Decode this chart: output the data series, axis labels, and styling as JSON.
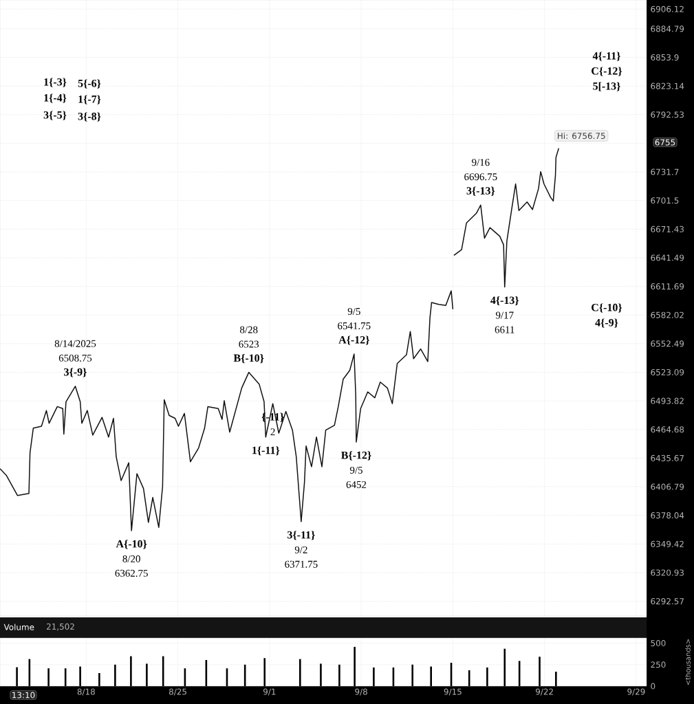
{
  "chart_data": [
    {
      "type": "line",
      "color": "#111111",
      "x": [
        "2025-08-11T10:00",
        "2025-08-11T22:00",
        "2025-08-12T18:00",
        "2025-08-13T15:00",
        "2025-08-13T17:00",
        "2025-08-13T23:00",
        "2025-08-14T14:00",
        "2025-08-14T23:00",
        "2025-08-15T04:00",
        "2025-08-15T19:00",
        "2025-08-16T05:00",
        "2025-08-16T07:00",
        "2025-08-16T11:00",
        "2025-08-17T04:00",
        "2025-08-17T13:00",
        "2025-08-17T16:00",
        "2025-08-18T02:00",
        "2025-08-18T12:00",
        "2025-08-19T05:00",
        "2025-08-19T17:00",
        "2025-08-20T02:00",
        "2025-08-20T07:00",
        "2025-08-20T16:00",
        "2025-08-21T06:00",
        "2025-08-21T11:00",
        "2025-08-21T21:00",
        "2025-08-22T09:00",
        "2025-08-22T18:00",
        "2025-08-23T02:00",
        "2025-08-23T13:00",
        "2025-08-23T20:00",
        "2025-08-23T23:00",
        "2025-08-24T08:00",
        "2025-08-24T19:00",
        "2025-08-25T01:00",
        "2025-08-25T12:00",
        "2025-08-25T23:00",
        "2025-08-26T14:00",
        "2025-08-27T01:00",
        "2025-08-27T07:00",
        "2025-08-28T02:00",
        "2025-08-28T09:00",
        "2025-08-28T13:00",
        "2025-08-28T23:00",
        "2025-08-29T21:00",
        "2025-08-30T10:00",
        "2025-08-31T05:00",
        "2025-08-31T14:00",
        "2025-08-31T17:00",
        "2025-09-01T06:00",
        "2025-09-01T17:00",
        "2025-09-02T06:00",
        "2025-09-02T18:00",
        "2025-09-03T01:00",
        "2025-09-03T10:00",
        "2025-09-03T16:00",
        "2025-09-03T19:00",
        "2025-09-04T05:00",
        "2025-09-04T14:00",
        "2025-09-05T00:00",
        "2025-09-05T07:00",
        "2025-09-05T23:00",
        "2025-09-06T06:00",
        "2025-09-06T15:00",
        "2025-09-07T03:00",
        "2025-09-07T11:00",
        "2025-09-07T14:00",
        "2025-09-07T15:00",
        "2025-09-07T23:00",
        "2025-09-08T12:00",
        "2025-09-09T01:00",
        "2025-09-09T11:00",
        "2025-09-10T00:00",
        "2025-09-10T09:00",
        "2025-09-10T18:00",
        "2025-09-11T11:00",
        "2025-09-11T18:00",
        "2025-09-12T00:00",
        "2025-09-12T13:00",
        "2025-09-13T02:00",
        "2025-09-13T06:00",
        "2025-09-13T09:00",
        "2025-09-13T22:00",
        "2025-09-14T11:00",
        "2025-09-14T21:00",
        "2025-09-15T00:00",
        "2025-09-15T01:00",
        "2025-09-15T02:00",
        "2025-09-15T16:00",
        "2025-09-16T01:00",
        "2025-09-16T19:00",
        "2025-09-17T03:00",
        "2025-09-17T10:00",
        "2025-09-17T20:00",
        "2025-09-18T14:00",
        "2025-09-18T21:00",
        "2025-09-18T23:00",
        "2025-09-19T03:00",
        "2025-09-19T12:00",
        "2025-09-19T19:00",
        "2025-09-20T01:00",
        "2025-09-20T16:00",
        "2025-09-21T02:00",
        "2025-09-21T13:00",
        "2025-09-21T17:00",
        "2025-09-21T23:00",
        "2025-09-22T11:00",
        "2025-09-22T16:00",
        "2025-09-22T20:00",
        "2025-09-22T21:00",
        "2025-09-23T02:00"
      ],
      "values": [
        6425,
        6418,
        6398,
        6400,
        6441,
        6466,
        6468,
        6484,
        6471,
        6488,
        6486,
        6460,
        6493,
        6508.75,
        6493,
        6471,
        6484,
        6459,
        6477,
        6457,
        6476,
        6437,
        6413,
        6431,
        6362.75,
        6420,
        6405,
        6371,
        6396,
        6366,
        6407,
        6495,
        6479,
        6476,
        6468,
        6481,
        6432,
        6446,
        6466,
        6488,
        6486,
        6475,
        6494,
        6462,
        6507,
        6523,
        6511,
        6493,
        6457,
        6491,
        6461,
        6483,
        6464,
        6437,
        6371.75,
        6411,
        6448,
        6427,
        6457,
        6427,
        6464,
        6469,
        6488,
        6516,
        6525,
        6541.75,
        6500,
        6452,
        6486,
        6503,
        6497,
        6513,
        6507,
        6491,
        6532,
        6541,
        6565,
        6537,
        6547,
        6534,
        6579,
        6595,
        6593,
        6592,
        6607,
        6588,
        null,
        6644,
        6650,
        6678,
        6688,
        6696.75,
        6662,
        6673,
        6664,
        6655,
        6611,
        6659,
        6693,
        6719,
        6691,
        6700,
        6692,
        6714,
        6732,
        6719,
        6705,
        6701,
        6728,
        6747,
        6756.75
      ],
      "xlim": [
        "2025-08-11T10:00",
        "2025-09-29T19:00"
      ],
      "xticks": [
        {
          "value": "2025-08-18",
          "label": null
        },
        {
          "value": "2025-08-25",
          "label": null
        },
        {
          "value": "2025-09-01",
          "label": null
        },
        {
          "value": "2025-09-08",
          "label": null
        },
        {
          "value": "2025-09-15",
          "label": null
        },
        {
          "value": "2025-09-22",
          "label": null
        },
        {
          "value": "2025-09-29",
          "label": null
        }
      ],
      "ylim": [
        6278,
        6916
      ],
      "log": true,
      "yticks": [
        6292.57,
        6320.93,
        6349.42,
        6378.04,
        6406.79,
        6435.67,
        6464.68,
        6493.82,
        6523.09,
        6552.49,
        6582.02,
        6611.69,
        6641.49,
        6671.43,
        6701.5,
        6731.7,
        {
          "value": 6762.05,
          "label": null
        },
        6792.53,
        6823.14,
        6853.9,
        6884.79,
        6906.12
      ],
      "tick_labels": "y",
      "grid": true,
      "annotations": [
        "1{-3}",
        "1{-4}",
        "3{-5}",
        "5{-6}",
        "1{-7}",
        "3{-8}",
        "4{-11}",
        "C{-12}",
        "5[-13}",
        "C{-10}",
        "4{-9}",
        "6755",
        {
          "text": "3{-9}",
          "x": "2025-08-17T04:00",
          "y": 6508.75
        },
        "6508.75",
        "8/14/2025",
        {
          "text": "A{-10}",
          "x": "2025-08-21T11:00",
          "y": 6362.75
        },
        "8/20",
        "6362.75",
        {
          "text": "B{-10}",
          "x": "2025-08-30T10:00",
          "y": 6523
        },
        "6523",
        "8/28",
        {
          "text": "{-11}",
          "x": "2025-09-01T06:00",
          "y": 6491
        },
        "2",
        {
          "text": "1{-11}",
          "x": "2025-08-31T17:00",
          "y": 6457
        },
        {
          "text": "3{-11}",
          "x": "2025-09-03T10:00",
          "y": 6371.75
        },
        "9/2",
        "6371.75",
        {
          "text": "A{-12}",
          "x": "2025-09-07T11:00",
          "y": 6541.75
        },
        "6541.75",
        "9/5",
        {
          "text": "B{-12}",
          "x": "2025-09-07T15:00",
          "y": 6452
        },
        "9/5",
        "6452",
        {
          "text": "3{-13}",
          "x": "2025-09-17T03:00",
          "y": 6696.75
        },
        "6696.75",
        "9/16",
        {
          "text": "4{-13}",
          "x": "2025-09-18T23:00",
          "y": 6611
        },
        "9/17",
        "6611",
        {
          "text": "Hi: 6756.75",
          "x": "2025-09-23T02:00",
          "y": 6756.75
        }
      ]
    },
    {
      "type": "bar",
      "title": "Volume",
      "color": "#000000",
      "x": [
        "2025-08-12T17:00",
        "2025-08-13T16:00",
        "2025-08-15T03:00",
        "2025-08-16T10:00",
        "2025-08-17T13:00",
        "2025-08-19T00:00",
        "2025-08-20T05:00",
        "2025-08-21T10:00",
        "2025-08-22T15:00",
        "2025-08-23T21:00",
        "2025-08-25T13:00",
        "2025-08-27T04:00",
        "2025-08-28T18:00",
        "2025-08-30T03:00",
        "2025-08-31T15:00",
        "2025-09-03T08:00",
        "2025-09-04T22:00",
        "2025-09-06T08:00",
        "2025-09-07T12:00",
        "2025-09-08T23:00",
        "2025-09-10T11:00",
        "2025-09-11T22:00",
        "2025-09-13T08:00",
        "2025-09-14T21:00",
        "2025-09-16T06:00",
        "2025-09-17T15:00",
        "2025-09-18T23:00",
        "2025-09-20T02:00",
        "2025-09-21T15:00",
        "2025-09-22T21:00"
      ],
      "values": [
        220,
        315,
        207,
        207,
        228,
        152,
        250,
        348,
        261,
        348,
        207,
        304,
        207,
        250,
        326,
        315,
        261,
        250,
        457,
        217,
        217,
        250,
        228,
        272,
        185,
        217,
        435,
        293,
        342,
        168
      ],
      "xlim": [
        "2025-08-11T10:00",
        "2025-09-29T19:00"
      ],
      "xticks": [
        {
          "value": "2025-08-18",
          "label": "8/18"
        },
        {
          "value": "2025-08-25",
          "label": "8/25"
        },
        {
          "value": "2025-09-01",
          "label": "9/1"
        },
        {
          "value": "2025-09-08",
          "label": "9/8"
        },
        {
          "value": "2025-09-15",
          "label": "9/15"
        },
        {
          "value": "2025-09-22",
          "label": "9/22"
        },
        {
          "value": "2025-09-29",
          "label": "9/29"
        }
      ],
      "ylim": [
        0,
        560
      ],
      "yticks": [
        0,
        250,
        500
      ],
      "ylabel": "<thousands>",
      "grid": true,
      "annotations": [
        "21,502",
        "13:10"
      ]
    }
  ]
}
